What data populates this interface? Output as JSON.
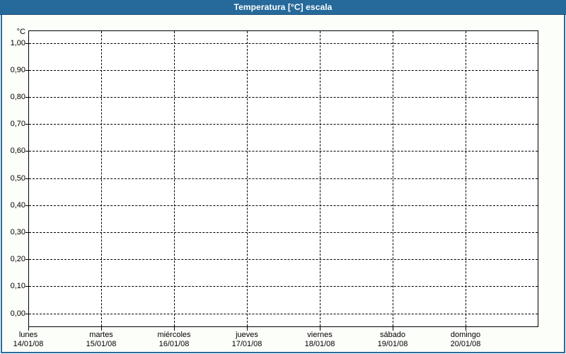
{
  "window": {
    "title": "Temperatura [°C] escala"
  },
  "colors": {
    "titlebar_bg": "#266A9B",
    "titlebar_text": "#FFFFFF",
    "frame_border": "#2A6C9C",
    "content_bg": "#FCFEF9",
    "plot_bg": "#FFFFFF",
    "axis_and_grid": "#000000",
    "label_text": "#000000"
  },
  "chart_data": {
    "type": "line",
    "title": "Temperatura [°C] escala",
    "ylabel": "°C",
    "ylim": [
      0.0,
      1.0
    ],
    "ytick_interval": 0.1,
    "ytick_labels": [
      "1,00",
      "0,90",
      "0,80",
      "0,70",
      "0,60",
      "0,50",
      "0,40",
      "0,30",
      "0,20",
      "0,10",
      "0,00"
    ],
    "xtick_labels": [
      {
        "day": "lunes",
        "date": "14/01/08"
      },
      {
        "day": "martes",
        "date": "15/01/08"
      },
      {
        "day": "miércoles",
        "date": "16/01/08"
      },
      {
        "day": "jueves",
        "date": "17/01/08"
      },
      {
        "day": "viernes",
        "date": "18/01/08"
      },
      {
        "day": "sábado",
        "date": "19/01/08"
      },
      {
        "day": "domingo",
        "date": "20/01/08"
      }
    ],
    "series": [],
    "plot_is_empty": true,
    "grid": "dashed",
    "legend": "none"
  }
}
